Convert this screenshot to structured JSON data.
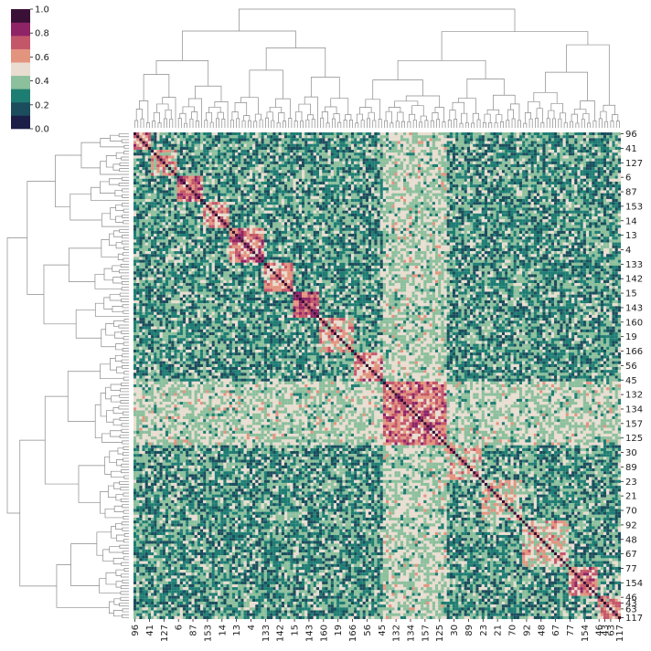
{
  "chart_data": {
    "type": "heatmap",
    "title": "",
    "xlabel": "",
    "ylabel": "",
    "n": 168,
    "dendrogram": {
      "top": true,
      "left": true
    },
    "tick_labels": [
      "96",
      "41",
      "127",
      "6",
      "87",
      "153",
      "14",
      "13",
      "4",
      "133",
      "142",
      "15",
      "143",
      "160",
      "19",
      "166",
      "56",
      "45",
      "132",
      "134",
      "157",
      "125",
      "30",
      "89",
      "23",
      "21",
      "70",
      "92",
      "48",
      "67",
      "77",
      "154",
      "46",
      "43",
      "63",
      "117"
    ],
    "tick_positions": [
      0,
      5,
      10,
      15,
      20,
      25,
      30,
      35,
      40,
      45,
      50,
      55,
      60,
      65,
      70,
      75,
      80,
      85,
      90,
      95,
      100,
      105,
      110,
      115,
      120,
      125,
      130,
      135,
      140,
      145,
      150,
      155,
      160,
      162,
      164,
      167
    ],
    "colorbar": {
      "ticks": [
        "0.0",
        "0.2",
        "0.4",
        "0.6",
        "0.8",
        "1.0"
      ],
      "range": [
        0,
        1
      ],
      "levels": [
        "#1b1f47",
        "#1b4d5c",
        "#1e7d73",
        "#8cbf9c",
        "#e8ddd0",
        "#e3947f",
        "#c4566a",
        "#8e2466",
        "#3b1036"
      ]
    },
    "clusters": [
      {
        "start": 0,
        "end": 6,
        "strength": 0.62
      },
      {
        "start": 6,
        "end": 15,
        "strength": 0.58
      },
      {
        "start": 15,
        "end": 24,
        "strength": 0.7
      },
      {
        "start": 24,
        "end": 33,
        "strength": 0.6
      },
      {
        "start": 33,
        "end": 45,
        "strength": 0.66
      },
      {
        "start": 45,
        "end": 55,
        "strength": 0.6
      },
      {
        "start": 55,
        "end": 64,
        "strength": 0.72
      },
      {
        "start": 64,
        "end": 76,
        "strength": 0.55
      },
      {
        "start": 76,
        "end": 86,
        "strength": 0.62
      },
      {
        "start": 86,
        "end": 108,
        "strength": 0.66
      },
      {
        "start": 108,
        "end": 120,
        "strength": 0.52
      },
      {
        "start": 120,
        "end": 134,
        "strength": 0.5
      },
      {
        "start": 134,
        "end": 150,
        "strength": 0.52
      },
      {
        "start": 150,
        "end": 160,
        "strength": 0.64
      },
      {
        "start": 160,
        "end": 168,
        "strength": 0.6
      }
    ]
  }
}
